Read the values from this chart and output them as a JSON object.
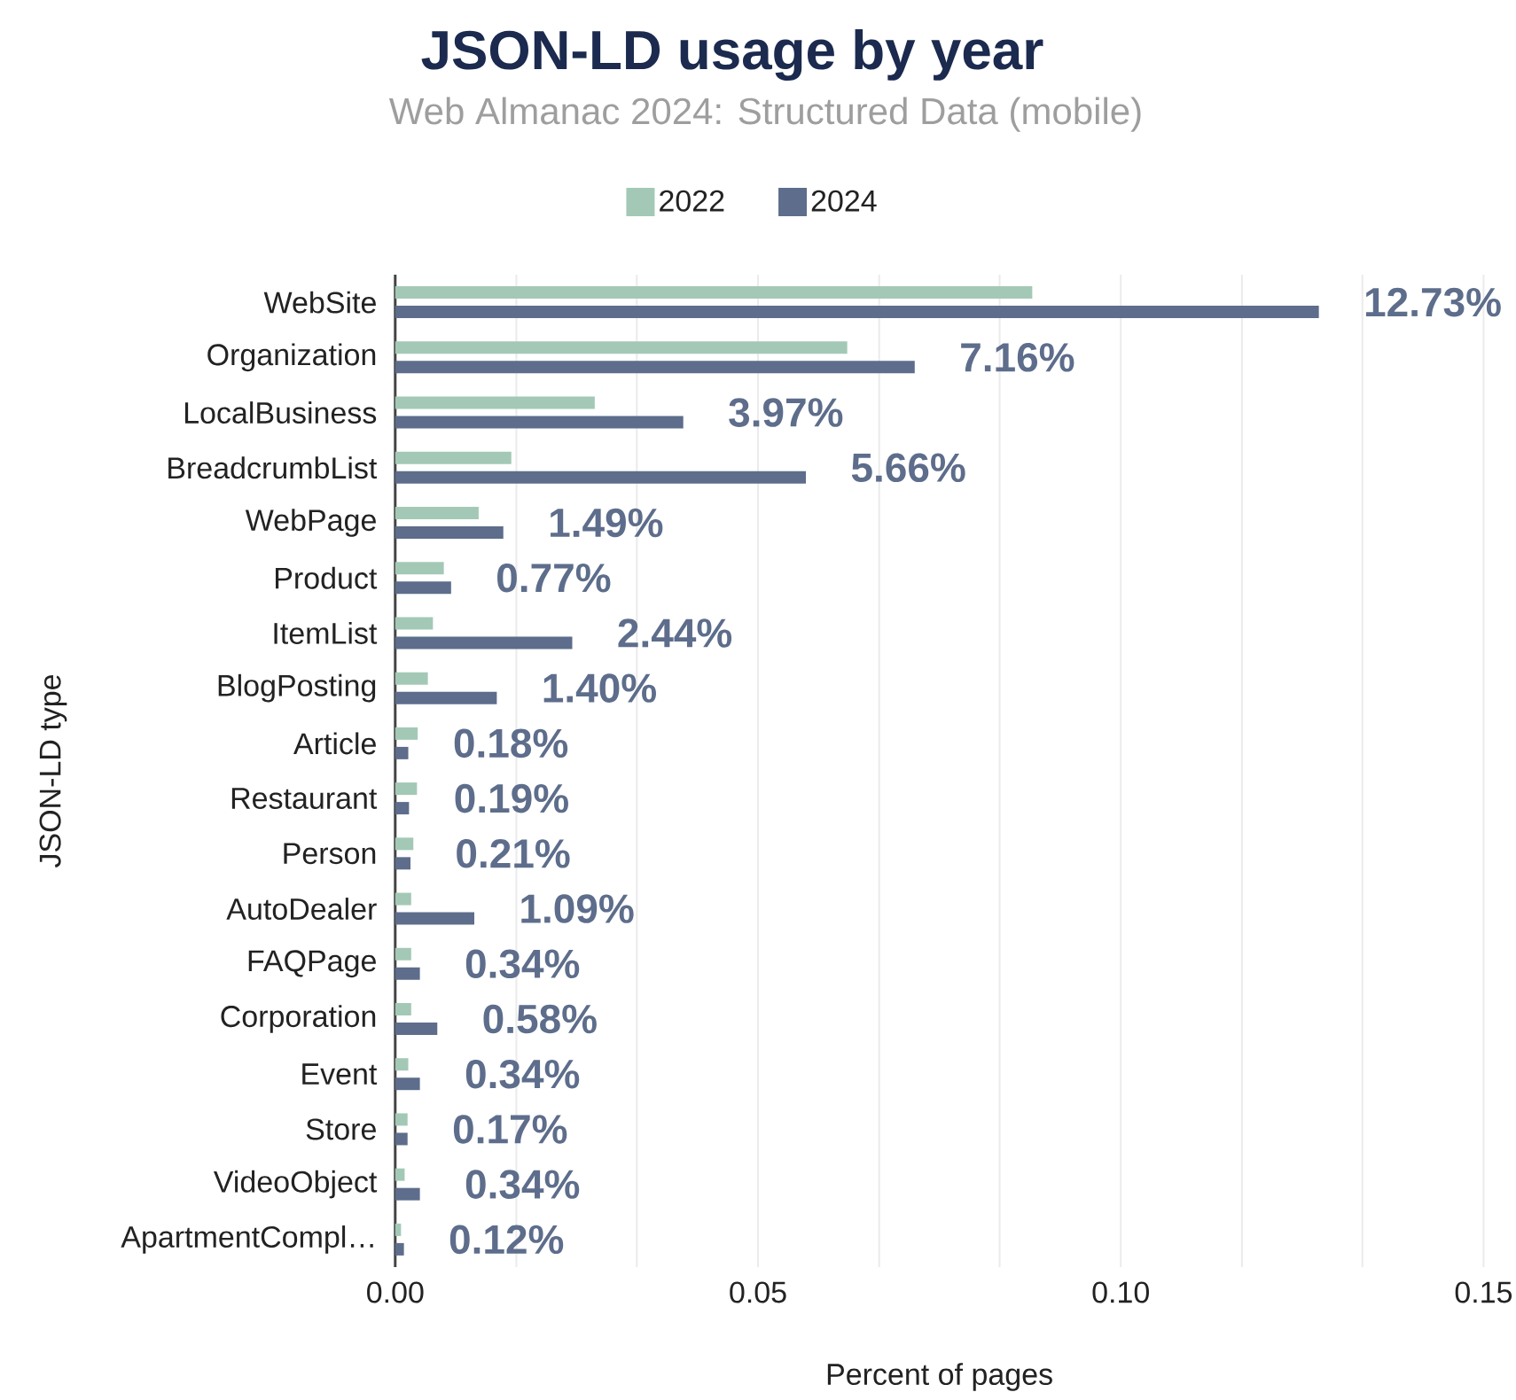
{
  "chart_data": {
    "type": "bar",
    "orientation": "horizontal",
    "title": "JSON-LD usage by year",
    "subtitle": "Web Almanac 2024: Structured Data (mobile)",
    "xlabel": "Percent of pages",
    "ylabel": "JSON-LD type",
    "categories": [
      "WebSite",
      "Organization",
      "LocalBusiness",
      "BreadcrumbList",
      "WebPage",
      "Product",
      "ItemList",
      "BlogPosting",
      "Article",
      "Restaurant",
      "Person",
      "AutoDealer",
      "FAQPage",
      "Corporation",
      "Event",
      "Store",
      "VideoObject",
      "ApartmentCompl…"
    ],
    "series": [
      {
        "name": "2022",
        "color": "#a3c9b6",
        "values": [
          0.0878,
          0.0623,
          0.0275,
          0.016,
          0.0115,
          0.0067,
          0.0052,
          0.0045,
          0.0031,
          0.003,
          0.0025,
          0.0022,
          0.0022,
          0.0022,
          0.0018,
          0.0017,
          0.0013,
          0.0008
        ]
      },
      {
        "name": "2024",
        "color": "#5d6d8b",
        "values": [
          0.1273,
          0.0716,
          0.0397,
          0.0566,
          0.0149,
          0.0077,
          0.0244,
          0.014,
          0.0018,
          0.0019,
          0.0021,
          0.0109,
          0.0034,
          0.0058,
          0.0034,
          0.0017,
          0.0034,
          0.0012
        ],
        "value_labels": [
          "12.73%",
          "7.16%",
          "3.97%",
          "5.66%",
          "1.49%",
          "0.77%",
          "2.44%",
          "1.40%",
          "0.18%",
          "0.19%",
          "0.21%",
          "1.09%",
          "0.34%",
          "0.58%",
          "0.34%",
          "0.17%",
          "0.34%",
          "0.12%"
        ]
      }
    ],
    "xlim": [
      0,
      0.15
    ],
    "xticks": [
      {
        "value": 0,
        "label": "0.00"
      },
      {
        "value": 0.0167,
        "label": null
      },
      {
        "value": 0.0333,
        "label": null
      },
      {
        "value": 0.05,
        "label": "0.05"
      },
      {
        "value": 0.0667,
        "label": null
      },
      {
        "value": 0.0833,
        "label": null
      },
      {
        "value": 0.1,
        "label": "0.10"
      },
      {
        "value": 0.1167,
        "label": null
      },
      {
        "value": 0.1333,
        "label": null
      },
      {
        "value": 0.15,
        "label": "0.15"
      }
    ],
    "grid": "x",
    "legend": "top"
  }
}
